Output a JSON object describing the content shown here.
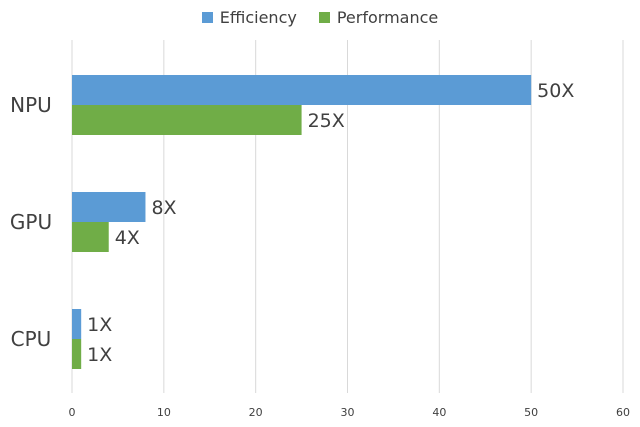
{
  "chart_data": {
    "type": "bar",
    "orientation": "horizontal",
    "categories": [
      "NPU",
      "GPU",
      "CPU"
    ],
    "series": [
      {
        "name": "Efficiency",
        "color": "#5B9BD5",
        "values": [
          50,
          8,
          1
        ],
        "labels": [
          "50X",
          "8X",
          "1X"
        ]
      },
      {
        "name": "Performance",
        "color": "#70AD47",
        "values": [
          25,
          4,
          1
        ],
        "labels": [
          "25X",
          "4X",
          "1X"
        ]
      }
    ],
    "xlim": [
      0,
      60
    ],
    "xticks": [
      0,
      10,
      20,
      30,
      40,
      50,
      60
    ],
    "grid": true,
    "legend_position": "top"
  }
}
